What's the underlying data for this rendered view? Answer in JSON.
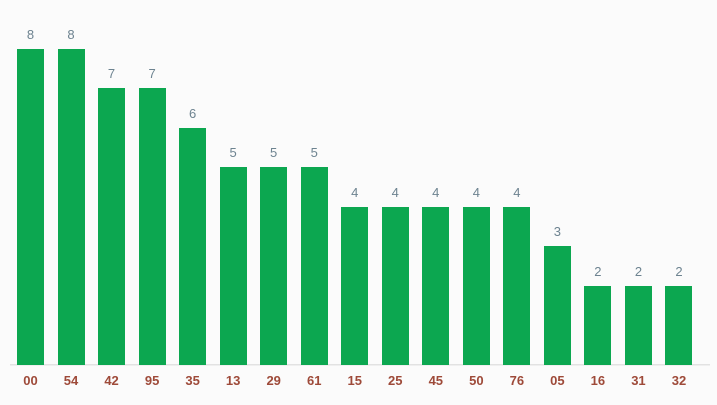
{
  "chart_data": {
    "type": "bar",
    "categories": [
      "00",
      "54",
      "42",
      "95",
      "35",
      "13",
      "29",
      "61",
      "15",
      "25",
      "45",
      "50",
      "76",
      "05",
      "16",
      "31",
      "32"
    ],
    "values": [
      8,
      8,
      7,
      7,
      6,
      5,
      5,
      5,
      4,
      4,
      4,
      4,
      4,
      3,
      2,
      2,
      2
    ],
    "title": "",
    "xlabel": "",
    "ylabel": "",
    "ylim": [
      0,
      8.5
    ],
    "grid": false,
    "legend": "none",
    "annotations": [
      "8",
      "8",
      "7",
      "7",
      "6",
      "5",
      "5",
      "5",
      "4",
      "4",
      "4",
      "4",
      "4",
      "3",
      "2",
      "2",
      "2"
    ],
    "colors": {
      "bar_fill": "#0ca750",
      "annotation_text": "#6d8390",
      "x_axis_label_text": "#9e4a39",
      "axis_line": "#e2e2e2",
      "background": "#fbfbfb"
    }
  }
}
